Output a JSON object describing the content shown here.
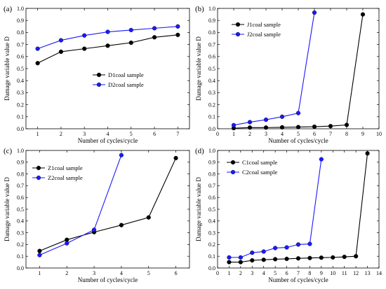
{
  "figure": {
    "colors": {
      "black_series": "#000000",
      "blue_series": "#1a1aff"
    },
    "marker": "circle"
  },
  "chart_data": [
    {
      "panel": "(a)",
      "type": "line",
      "xlabel": "Number of cycles/cycle",
      "ylabel": "Damage variable value D",
      "xlim": [
        0.5,
        7.5
      ],
      "ylim": [
        0,
        1.0
      ],
      "xticks": [
        1,
        2,
        3,
        4,
        5,
        6,
        7
      ],
      "yticks": [
        0,
        0.1,
        0.2,
        0.3,
        0.4,
        0.5,
        0.6,
        0.7,
        0.8,
        0.9,
        1.0
      ],
      "legend_position": "center-right",
      "series": [
        {
          "name": "D1coal sample",
          "color": "#000000",
          "x": [
            1,
            2,
            3,
            4,
            5,
            6,
            7
          ],
          "y": [
            0.545,
            0.64,
            0.665,
            0.69,
            0.715,
            0.76,
            0.78
          ]
        },
        {
          "name": "D2coal sample",
          "color": "#1a1aff",
          "x": [
            1,
            2,
            3,
            4,
            5,
            6,
            7
          ],
          "y": [
            0.665,
            0.735,
            0.775,
            0.805,
            0.82,
            0.835,
            0.85
          ]
        }
      ]
    },
    {
      "panel": "(b)",
      "type": "line",
      "xlabel": "Number of cycles/cycle",
      "ylabel": "Damage variable value D",
      "xlim": [
        0,
        10
      ],
      "ylim": [
        0,
        1.0
      ],
      "xticks": [
        0,
        1,
        2,
        3,
        4,
        5,
        6,
        7,
        8,
        9,
        10
      ],
      "yticks": [
        0,
        0.1,
        0.2,
        0.3,
        0.4,
        0.5,
        0.6,
        0.7,
        0.8,
        0.9,
        1.0
      ],
      "legend_position": "top-left",
      "series": [
        {
          "name": "J1coal sample",
          "color": "#000000",
          "x": [
            1,
            2,
            3,
            4,
            5,
            6,
            7,
            8,
            9
          ],
          "y": [
            0.005,
            0.01,
            0.01,
            0.012,
            0.014,
            0.017,
            0.022,
            0.032,
            0.95
          ]
        },
        {
          "name": "J2coal sample",
          "color": "#1a1aff",
          "x": [
            1,
            2,
            3,
            4,
            5,
            6
          ],
          "y": [
            0.03,
            0.055,
            0.075,
            0.1,
            0.13,
            0.965
          ]
        }
      ]
    },
    {
      "panel": "(c)",
      "type": "line",
      "xlabel": "Number of cycles/cycle",
      "ylabel": "Damage variable value D",
      "xlim": [
        0.5,
        6.5
      ],
      "ylim": [
        0,
        1.0
      ],
      "xticks": [
        1,
        2,
        3,
        4,
        5,
        6
      ],
      "yticks": [
        0,
        0.1,
        0.2,
        0.3,
        0.4,
        0.5,
        0.6,
        0.7,
        0.8,
        0.9,
        1.0
      ],
      "legend_position": "top-left",
      "series": [
        {
          "name": "Z1coal sample",
          "color": "#000000",
          "x": [
            1,
            2,
            3,
            4,
            5,
            6
          ],
          "y": [
            0.145,
            0.24,
            0.305,
            0.365,
            0.43,
            0.935
          ]
        },
        {
          "name": "Z2coal sample",
          "color": "#1a1aff",
          "x": [
            1,
            2,
            3,
            4
          ],
          "y": [
            0.11,
            0.21,
            0.325,
            0.96
          ]
        }
      ]
    },
    {
      "panel": "(d)",
      "type": "line",
      "xlabel": "Number of cycles/cycle",
      "ylabel": "Damage variable value D",
      "xlim": [
        0,
        14
      ],
      "ylim": [
        0,
        1.0
      ],
      "xticks": [
        0,
        1,
        2,
        3,
        4,
        5,
        6,
        7,
        8,
        9,
        10,
        11,
        12,
        13,
        14
      ],
      "yticks": [
        0,
        0.1,
        0.2,
        0.3,
        0.4,
        0.5,
        0.6,
        0.7,
        0.8,
        0.9,
        1.0
      ],
      "legend_position": "top-left",
      "series": [
        {
          "name": "C1coal sample",
          "color": "#000000",
          "x": [
            1,
            2,
            3,
            4,
            5,
            6,
            7,
            8,
            9,
            10,
            11,
            12,
            13
          ],
          "y": [
            0.05,
            0.05,
            0.065,
            0.07,
            0.075,
            0.078,
            0.082,
            0.085,
            0.088,
            0.09,
            0.095,
            0.1,
            0.975
          ]
        },
        {
          "name": "C2coal sample",
          "color": "#1a1aff",
          "x": [
            1,
            2,
            3,
            4,
            5,
            6,
            7,
            8,
            9
          ],
          "y": [
            0.09,
            0.09,
            0.13,
            0.14,
            0.17,
            0.175,
            0.2,
            0.205,
            0.925
          ]
        }
      ]
    }
  ]
}
